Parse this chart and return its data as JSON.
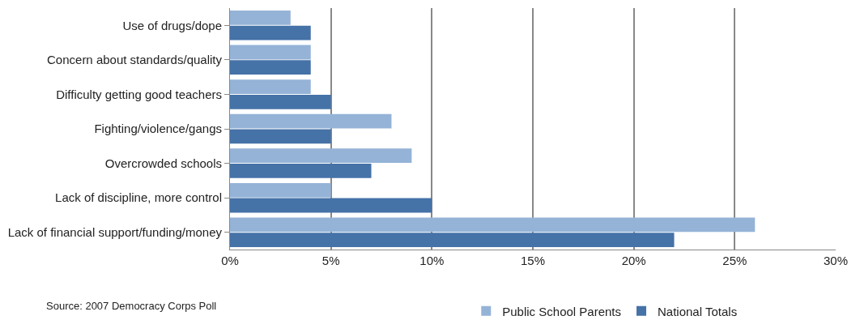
{
  "chart_data": {
    "type": "bar",
    "orientation": "horizontal",
    "categories": [
      "Use of drugs/dope",
      "Concern about standards/quality",
      "Difficulty getting good teachers",
      "Fighting/violence/gangs",
      "Overcrowded schools",
      "Lack of discipline, more control",
      "Lack of financial support/funding/money"
    ],
    "series": [
      {
        "name": "Public School Parents",
        "color": "#95b3d7",
        "values": [
          3,
          4,
          4,
          8,
          9,
          5,
          26
        ]
      },
      {
        "name": "National Totals",
        "color": "#4572a7",
        "values": [
          4,
          4,
          5,
          5,
          7,
          10,
          22
        ]
      }
    ],
    "xlim": [
      0,
      30
    ],
    "xticks": [
      {
        "value": 0,
        "label": "0%"
      },
      {
        "value": 5,
        "label": "5%"
      },
      {
        "value": 10,
        "label": "10%"
      },
      {
        "value": 15,
        "label": "15%"
      },
      {
        "value": 20,
        "label": "20%"
      },
      {
        "value": 25,
        "label": "25%"
      },
      {
        "value": 30,
        "label": "30%"
      }
    ],
    "grid": "x",
    "legend": "bottom",
    "annotations": [
      "Source: 2007 Democracy Corps Poll"
    ]
  }
}
